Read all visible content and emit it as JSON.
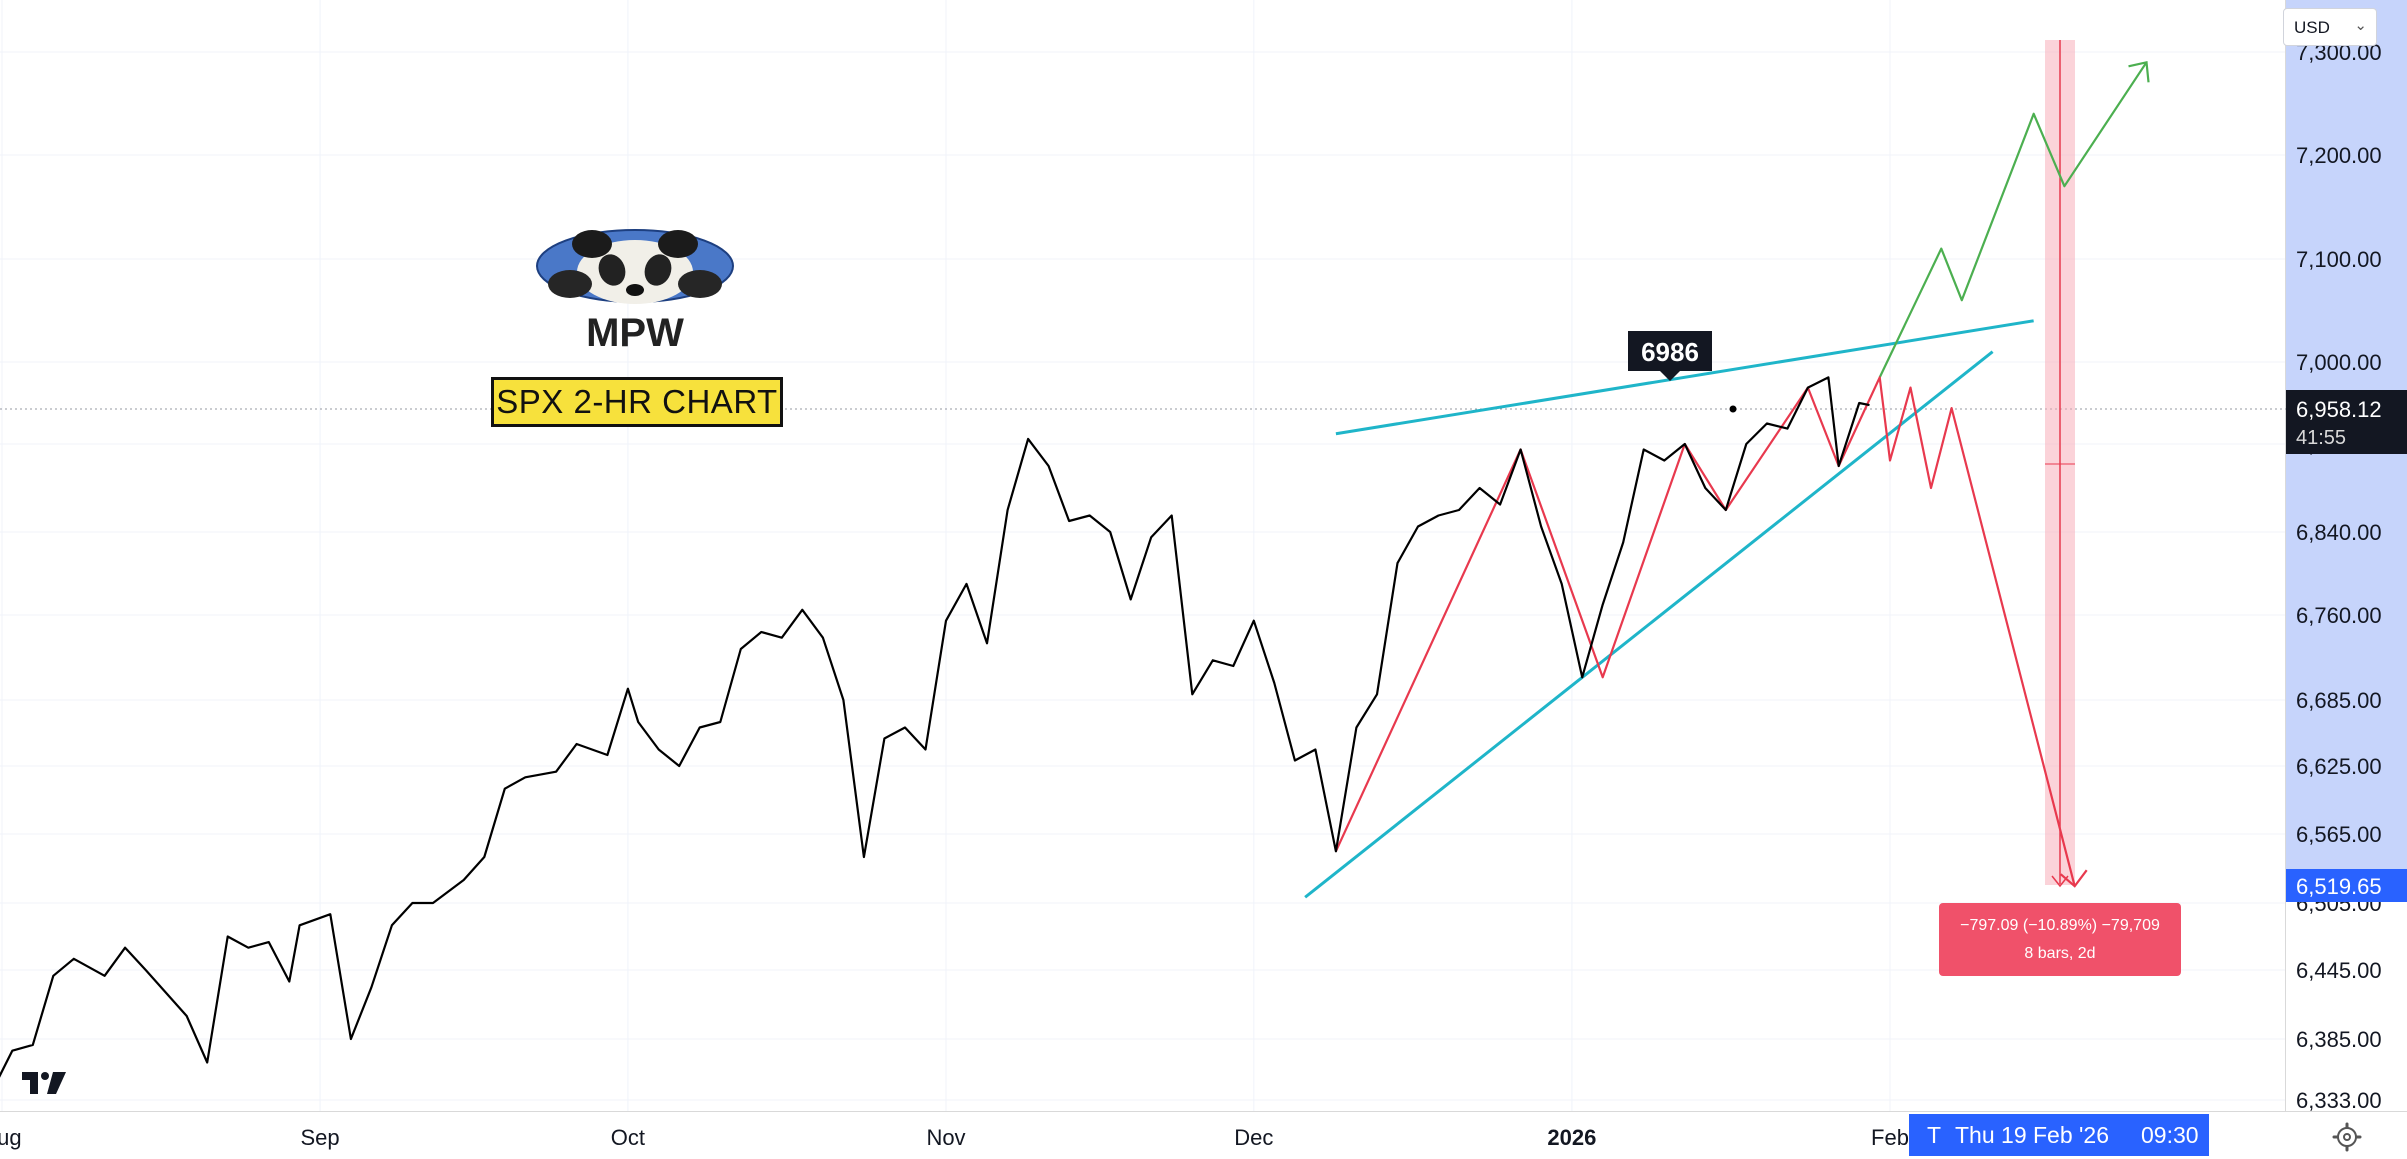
{
  "header": {
    "currency": "USD"
  },
  "annotations": {
    "title": "SPX 2-HR CHART",
    "logo_text": "MPW",
    "peak_label": "6986",
    "measure_line1": "−797.09 (−10.89%) −79,709",
    "measure_line2": "8 bars, 2d"
  },
  "price_tags": {
    "current_price": "6,958.12",
    "countdown": "41:55",
    "target_price": "6,519.65"
  },
  "crosshair": {
    "time_label_prefix": "T",
    "time_label": "Thu 19 Feb '26",
    "time_value": "09:30"
  },
  "colors": {
    "price_line": "#000000",
    "trend_lines": "#1fb5c9",
    "bearish_path": "#e8394e",
    "bullish_path": "#4caf50",
    "axis_highlight": "#c6d4fb",
    "tag_blue": "#2962ff",
    "measure_red": "#f0516a"
  },
  "icons": {
    "tradingview_logo": "tradingview-logo-icon",
    "settings": "gear-icon",
    "dropdown": "chevron-down-icon"
  },
  "chart_data": {
    "type": "line",
    "title": "SPX 2-HR CHART",
    "xlabel": "",
    "ylabel": "",
    "x_ticks": [
      "Aug",
      "Sep",
      "Oct",
      "Nov",
      "Dec",
      "2026",
      "Feb"
    ],
    "y_ticks": [
      "6,333.00",
      "6,385.00",
      "6,445.00",
      "6,505.00",
      "6,565.00",
      "6,625.00",
      "6,685.00",
      "6,760.00",
      "6,840.00",
      "6,920.00",
      "7,000.00",
      "7,100.00",
      "7,200.00",
      "7,300.00"
    ],
    "ylim": [
      6333,
      7300
    ],
    "grid": true,
    "series": [
      {
        "values": [
          [
            "2025-07-31",
            6340
          ],
          [
            "2025-08-02",
            6375
          ],
          [
            "2025-08-04",
            6380
          ],
          [
            "2025-08-06",
            6440
          ],
          [
            "2025-08-08",
            6455
          ],
          [
            "2025-08-11",
            6440
          ],
          [
            "2025-08-13",
            6465
          ],
          [
            "2025-08-15",
            6445
          ],
          [
            "2025-08-19",
            6405
          ],
          [
            "2025-08-21",
            6365
          ],
          [
            "2025-08-23",
            6475
          ],
          [
            "2025-08-25",
            6465
          ],
          [
            "2025-08-27",
            6470
          ],
          [
            "2025-08-29",
            6435
          ],
          [
            "2025-08-30",
            6485
          ],
          [
            "2025-09-02",
            6495
          ],
          [
            "2025-09-04",
            6385
          ],
          [
            "2025-09-06",
            6430
          ],
          [
            "2025-09-08",
            6485
          ],
          [
            "2025-09-10",
            6505
          ],
          [
            "2025-09-12",
            6505
          ],
          [
            "2025-09-15",
            6525
          ],
          [
            "2025-09-17",
            6545
          ],
          [
            "2025-09-19",
            6605
          ],
          [
            "2025-09-21",
            6615
          ],
          [
            "2025-09-24",
            6620
          ],
          [
            "2025-09-26",
            6645
          ],
          [
            "2025-09-29",
            6635
          ],
          [
            "2025-10-01",
            6695
          ],
          [
            "2025-10-02",
            6665
          ],
          [
            "2025-10-04",
            6640
          ],
          [
            "2025-10-06",
            6625
          ],
          [
            "2025-10-08",
            6660
          ],
          [
            "2025-10-10",
            6665
          ],
          [
            "2025-10-12",
            6730
          ],
          [
            "2025-10-14",
            6745
          ],
          [
            "2025-10-16",
            6740
          ],
          [
            "2025-10-18",
            6765
          ],
          [
            "2025-10-20",
            6740
          ],
          [
            "2025-10-22",
            6685
          ],
          [
            "2025-10-24",
            6545
          ],
          [
            "2025-10-26",
            6650
          ],
          [
            "2025-10-28",
            6660
          ],
          [
            "2025-10-30",
            6640
          ],
          [
            "2025-11-01",
            6755
          ],
          [
            "2025-11-03",
            6790
          ],
          [
            "2025-11-05",
            6735
          ],
          [
            "2025-11-07",
            6860
          ],
          [
            "2025-11-09",
            6925
          ],
          [
            "2025-11-11",
            6900
          ],
          [
            "2025-11-13",
            6850
          ],
          [
            "2025-11-15",
            6855
          ],
          [
            "2025-11-17",
            6840
          ],
          [
            "2025-11-19",
            6775
          ],
          [
            "2025-11-21",
            6835
          ],
          [
            "2025-11-23",
            6855
          ],
          [
            "2025-11-25",
            6690
          ],
          [
            "2025-11-27",
            6720
          ],
          [
            "2025-11-29",
            6715
          ],
          [
            "2025-12-01",
            6755
          ],
          [
            "2025-12-03",
            6700
          ],
          [
            "2025-12-05",
            6630
          ],
          [
            "2025-12-07",
            6640
          ],
          [
            "2025-12-09",
            6550
          ],
          [
            "2025-12-11",
            6660
          ],
          [
            "2025-12-13",
            6690
          ],
          [
            "2025-12-15",
            6810
          ],
          [
            "2025-12-17",
            6845
          ],
          [
            "2025-12-19",
            6855
          ],
          [
            "2025-12-21",
            6860
          ],
          [
            "2025-12-23",
            6880
          ],
          [
            "2025-12-25",
            6865
          ],
          [
            "2025-12-27",
            6915
          ],
          [
            "2025-12-29",
            6845
          ],
          [
            "2025-12-31",
            6790
          ],
          [
            "2026-01-02",
            6705
          ],
          [
            "2026-01-04",
            6770
          ],
          [
            "2026-01-06",
            6830
          ],
          [
            "2026-01-08",
            6915
          ],
          [
            "2026-01-10",
            6905
          ],
          [
            "2026-01-12",
            6920
          ],
          [
            "2026-01-14",
            6880
          ],
          [
            "2026-01-16",
            6860
          ],
          [
            "2026-01-18",
            6920
          ],
          [
            "2026-01-20",
            6940
          ],
          [
            "2026-01-22",
            6935
          ],
          [
            "2026-01-24",
            6975
          ],
          [
            "2026-01-26",
            6985
          ],
          [
            "2026-01-27",
            6900
          ],
          [
            "2026-01-29",
            6960
          ],
          [
            "2026-01-30",
            6958
          ]
        ]
      }
    ],
    "annotations": [
      {
        "text": "6986",
        "x": "2026-01-26",
        "y": 6986
      }
    ],
    "projection_bearish": [
      [
        "2025-12-09",
        6550
      ],
      [
        "2025-12-27",
        6915
      ],
      [
        "2026-01-04",
        6705
      ],
      [
        "2026-01-12",
        6920
      ],
      [
        "2026-01-16",
        6860
      ],
      [
        "2026-01-24",
        6975
      ],
      [
        "2026-01-27",
        6900
      ],
      [
        "2026-01-31",
        6985
      ],
      [
        "2026-02-01",
        6905
      ],
      [
        "2026-02-03",
        6975
      ],
      [
        "2026-02-05",
        6880
      ],
      [
        "2026-02-07",
        6955
      ],
      [
        "2026-02-19",
        6519.65
      ]
    ],
    "projection_bullish": [
      [
        "2026-01-31",
        6985
      ],
      [
        "2026-02-06",
        7110
      ],
      [
        "2026-02-08",
        7060
      ],
      [
        "2026-02-15",
        7240
      ],
      [
        "2026-02-18",
        7170
      ],
      [
        "2026-02-26",
        7290
      ]
    ],
    "trend_lines": [
      {
        "from": [
          "2025-12-09",
          6930
        ],
        "to": [
          "2026-02-15",
          7040
        ]
      },
      {
        "from": [
          "2025-12-06",
          6510
        ],
        "to": [
          "2026-02-11",
          7010
        ]
      }
    ]
  }
}
